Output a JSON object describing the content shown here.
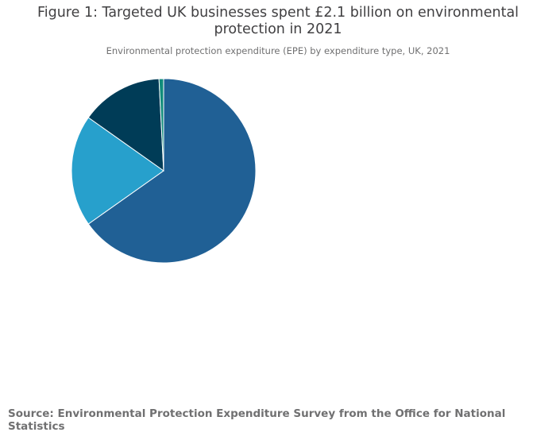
{
  "title_line1": "Figure 1: Targeted UK businesses spent £2.1 billion on environmental",
  "title_line2": "protection in 2021",
  "subtitle": "Environmental protection expenditure (EPE) by expenditure type, UK, 2021",
  "source": "Source: Environmental Protection Expenditure Survey from the Office for National Statistics",
  "chart_data": {
    "type": "pie",
    "title": "Figure 1: Targeted UK businesses spent £2.1 billion on environmental protection in 2021",
    "subtitle": "Environmental protection expenditure (EPE) by expenditure type, UK, 2021",
    "unit": "percent of total EPE",
    "direction": "clockwise from top",
    "values": [
      65.2,
      19.6,
      14.4,
      0.8
    ],
    "colors": [
      "#206095",
      "#27a0cc",
      "#003c57",
      "#118c7b"
    ],
    "legend": false
  }
}
